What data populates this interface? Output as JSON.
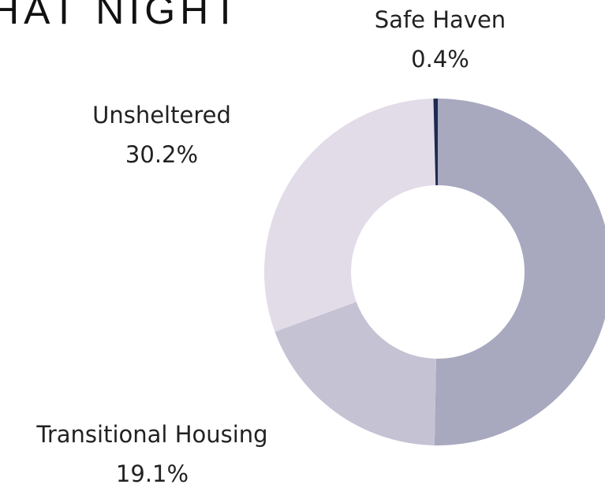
{
  "chart_data": {
    "type": "donut",
    "title": "HAT NIGHT",
    "categories": [
      null,
      "Transitional Housing",
      "Unsheltered",
      "Safe Haven"
    ],
    "values": [
      50.3,
      19.1,
      30.2,
      0.4
    ],
    "value_labels": [
      null,
      "19.1%",
      "30.2%",
      "0.4%"
    ],
    "colors": [
      "#a8a8bf",
      "#c5c2d4",
      "#e2dbe8",
      "#1e2a50"
    ]
  }
}
